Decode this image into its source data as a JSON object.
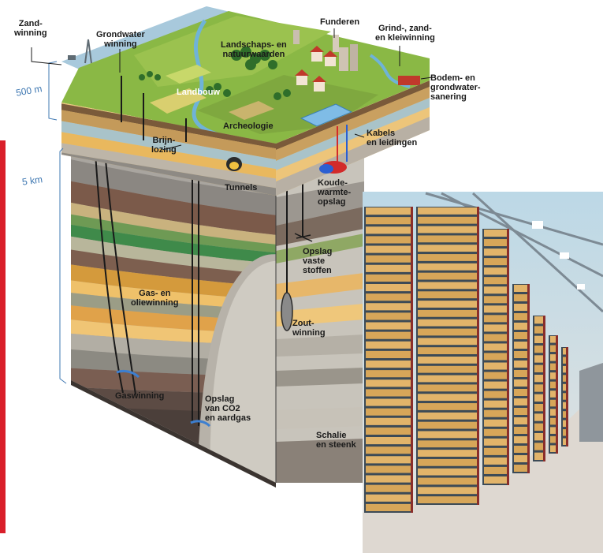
{
  "scale": {
    "shallow": "500 m",
    "deep": "5 km"
  },
  "labels": {
    "zandwinning": "Zand-\nwinning",
    "grondwaterwinning": "Grondwater\nwinning",
    "funderen": "Funderen",
    "grind": "Grind-, zand-\nen kleiwinning",
    "landschap": "Landschaps- en\nnatuurwaarden",
    "landbouw": "Landbouw",
    "bodem": "Bodem- en\ngrondwater-\nsanering",
    "archeologie": "Archeologie",
    "kabels": "Kabels\nen leidingen",
    "brijnlozing": "Brijn-\nlozing",
    "tunnels": "Tunnels",
    "koude": "Koude-\nwarmte-\nopslag",
    "opslagvast": "Opslag\nvaste\nstoffen",
    "gasolie": "Gas- en\noliewinning",
    "zoutwinning": "Zout-\nwinning",
    "gaswinning": "Gaswinning",
    "opslagco2": "Opslag\nvan CO2\nen aardgas",
    "schalie": "Schalie\nen steenk"
  },
  "colors": {
    "accent_red": "#d91f2a",
    "scale_blue": "#3f78b2"
  }
}
